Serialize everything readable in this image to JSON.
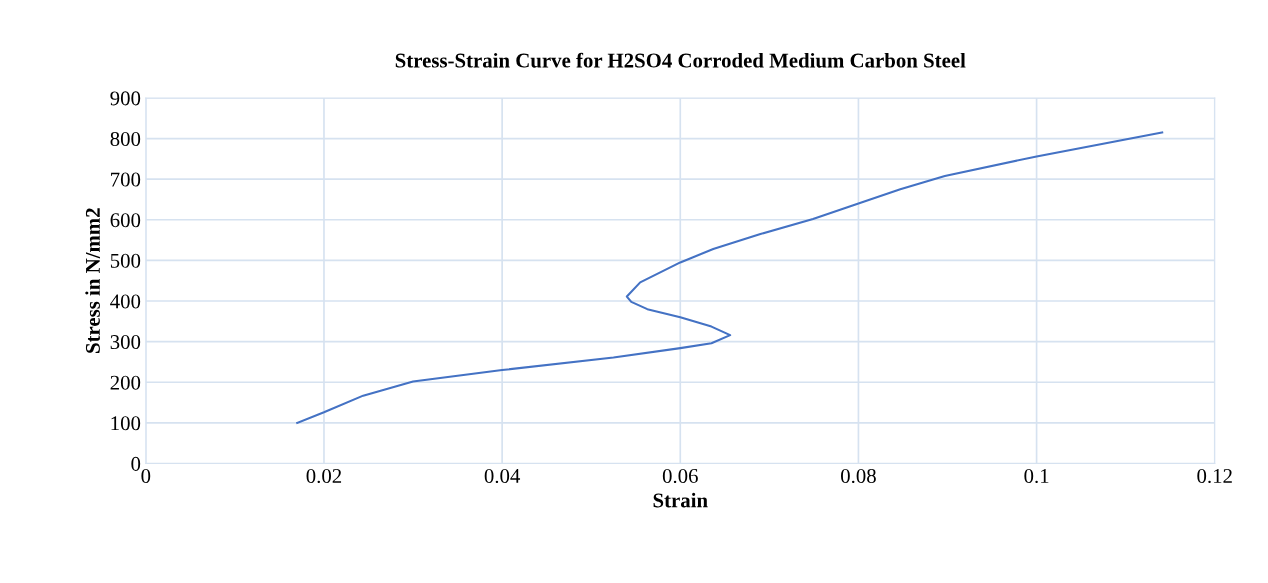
{
  "chart_data": {
    "type": "line",
    "title": "Stress-Strain Curve for H2SO4 Corroded Medium Carbon Steel",
    "xlabel": "Strain",
    "ylabel": "Stress in N/mm2",
    "series": [
      {
        "color": "#4472c4",
        "x": [
          0.017,
          0.02,
          0.0244,
          0.03,
          0.04,
          0.0525,
          0.06,
          0.0635,
          0.0656,
          0.0635,
          0.06,
          0.0563,
          0.0545,
          0.054,
          0.0555,
          0.06,
          0.0637,
          0.069,
          0.0749,
          0.08,
          0.0847,
          0.0897,
          0.1,
          0.1141
        ],
        "values": [
          100,
          126,
          167,
          202,
          230,
          261,
          284,
          296,
          316,
          337,
          360,
          380,
          398,
          411,
          446,
          495,
          528,
          565,
          602,
          640,
          675,
          708,
          756,
          815
        ]
      }
    ],
    "xlim": [
      0,
      0.12
    ],
    "xticks": [
      0,
      0.02,
      0.04,
      0.06,
      0.08,
      0.1,
      0.12
    ],
    "ylim": [
      0,
      900
    ],
    "yticks": [
      0,
      100,
      200,
      300,
      400,
      500,
      600,
      700,
      800,
      900
    ],
    "grid": true,
    "marker": "none",
    "line_style": "solid"
  }
}
